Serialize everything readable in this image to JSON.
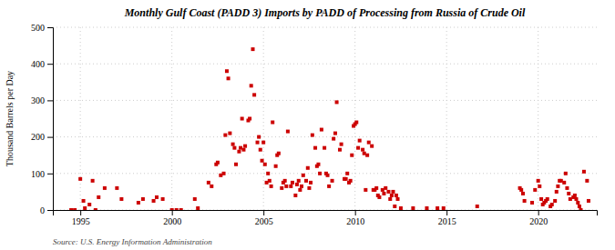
{
  "chart_data": {
    "type": "scatter",
    "title": "Monthly Gulf Coast (PADD 3) Imports by PADD of Processing from Russia of Crude Oil",
    "ylabel": "Thousand Barrels per Day",
    "annotations": [
      "Source: U.S. Energy Information Administration"
    ],
    "color": "#cc0000",
    "marker": "square",
    "grid": true,
    "xlim": [
      1993.5,
      2023.2
    ],
    "xticks": [
      1995,
      2000,
      2005,
      2010,
      2015,
      2020
    ],
    "ylim": [
      0,
      500
    ],
    "yticks": [
      0,
      100,
      200,
      300,
      400,
      500
    ],
    "x": [
      1994.5,
      1994.7,
      1995.0,
      1995.17,
      1995.25,
      1995.5,
      1995.67,
      1995.83,
      1996.0,
      1996.33,
      1997.0,
      1997.25,
      1998.17,
      1998.42,
      1999.0,
      1999.17,
      1999.5,
      2000.0,
      2000.25,
      2000.5,
      2001.25,
      2001.42,
      2002.0,
      2002.17,
      2002.42,
      2002.5,
      2002.67,
      2002.83,
      2002.92,
      2003.0,
      2003.08,
      2003.17,
      2003.33,
      2003.42,
      2003.5,
      2003.67,
      2003.75,
      2003.83,
      2003.92,
      2004.0,
      2004.17,
      2004.25,
      2004.33,
      2004.42,
      2004.5,
      2004.67,
      2004.75,
      2004.83,
      2004.92,
      2005.0,
      2005.08,
      2005.17,
      2005.25,
      2005.33,
      2005.42,
      2005.5,
      2005.67,
      2005.75,
      2005.83,
      2006.0,
      2006.08,
      2006.17,
      2006.25,
      2006.33,
      2006.5,
      2006.58,
      2006.75,
      2006.83,
      2006.92,
      2007.0,
      2007.08,
      2007.17,
      2007.33,
      2007.42,
      2007.5,
      2007.58,
      2007.67,
      2007.83,
      2007.92,
      2008.0,
      2008.08,
      2008.17,
      2008.33,
      2008.42,
      2008.5,
      2008.58,
      2008.75,
      2008.83,
      2008.92,
      2009.0,
      2009.17,
      2009.25,
      2009.42,
      2009.5,
      2009.58,
      2009.67,
      2009.75,
      2009.83,
      2009.92,
      2010.0,
      2010.08,
      2010.17,
      2010.25,
      2010.42,
      2010.5,
      2010.58,
      2010.67,
      2010.75,
      2010.92,
      2011.0,
      2011.08,
      2011.17,
      2011.25,
      2011.33,
      2011.5,
      2011.58,
      2011.67,
      2011.83,
      2011.92,
      2012.0,
      2012.08,
      2012.17,
      2012.25,
      2012.33,
      2012.5,
      2013.17,
      2013.92,
      2014.5,
      2014.83,
      2016.67,
      2019.0,
      2019.08,
      2019.17,
      2019.25,
      2019.67,
      2019.83,
      2020.0,
      2020.08,
      2020.17,
      2020.25,
      2020.33,
      2020.42,
      2020.5,
      2020.67,
      2020.75,
      2020.92,
      2021.0,
      2021.08,
      2021.17,
      2021.25,
      2021.42,
      2021.5,
      2021.58,
      2021.67,
      2021.75,
      2021.92,
      2022.0,
      2022.08,
      2022.17,
      2022.25,
      2022.33,
      2022.5,
      2022.67,
      2022.75
    ],
    "values": [
      0,
      0,
      85,
      25,
      5,
      15,
      80,
      0,
      35,
      60,
      60,
      30,
      20,
      30,
      25,
      35,
      30,
      0,
      0,
      0,
      30,
      5,
      75,
      65,
      125,
      130,
      95,
      100,
      205,
      380,
      360,
      210,
      180,
      170,
      125,
      160,
      170,
      250,
      165,
      175,
      245,
      250,
      340,
      440,
      315,
      185,
      200,
      165,
      135,
      185,
      125,
      75,
      100,
      80,
      65,
      240,
      120,
      150,
      155,
      60,
      75,
      80,
      65,
      215,
      65,
      75,
      40,
      70,
      80,
      55,
      65,
      95,
      80,
      115,
      60,
      75,
      205,
      170,
      120,
      125,
      100,
      220,
      170,
      100,
      95,
      65,
      80,
      195,
      210,
      295,
      165,
      180,
      85,
      85,
      100,
      75,
      80,
      150,
      230,
      235,
      240,
      170,
      190,
      165,
      155,
      55,
      150,
      185,
      175,
      55,
      55,
      60,
      40,
      35,
      55,
      45,
      60,
      50,
      30,
      40,
      50,
      10,
      40,
      30,
      5,
      5,
      5,
      5,
      5,
      10,
      60,
      55,
      45,
      25,
      20,
      55,
      80,
      65,
      30,
      15,
      20,
      25,
      30,
      10,
      15,
      25,
      50,
      65,
      80,
      80,
      75,
      100,
      60,
      45,
      30,
      35,
      40,
      30,
      20,
      10,
      0,
      105,
      80,
      25
    ]
  }
}
